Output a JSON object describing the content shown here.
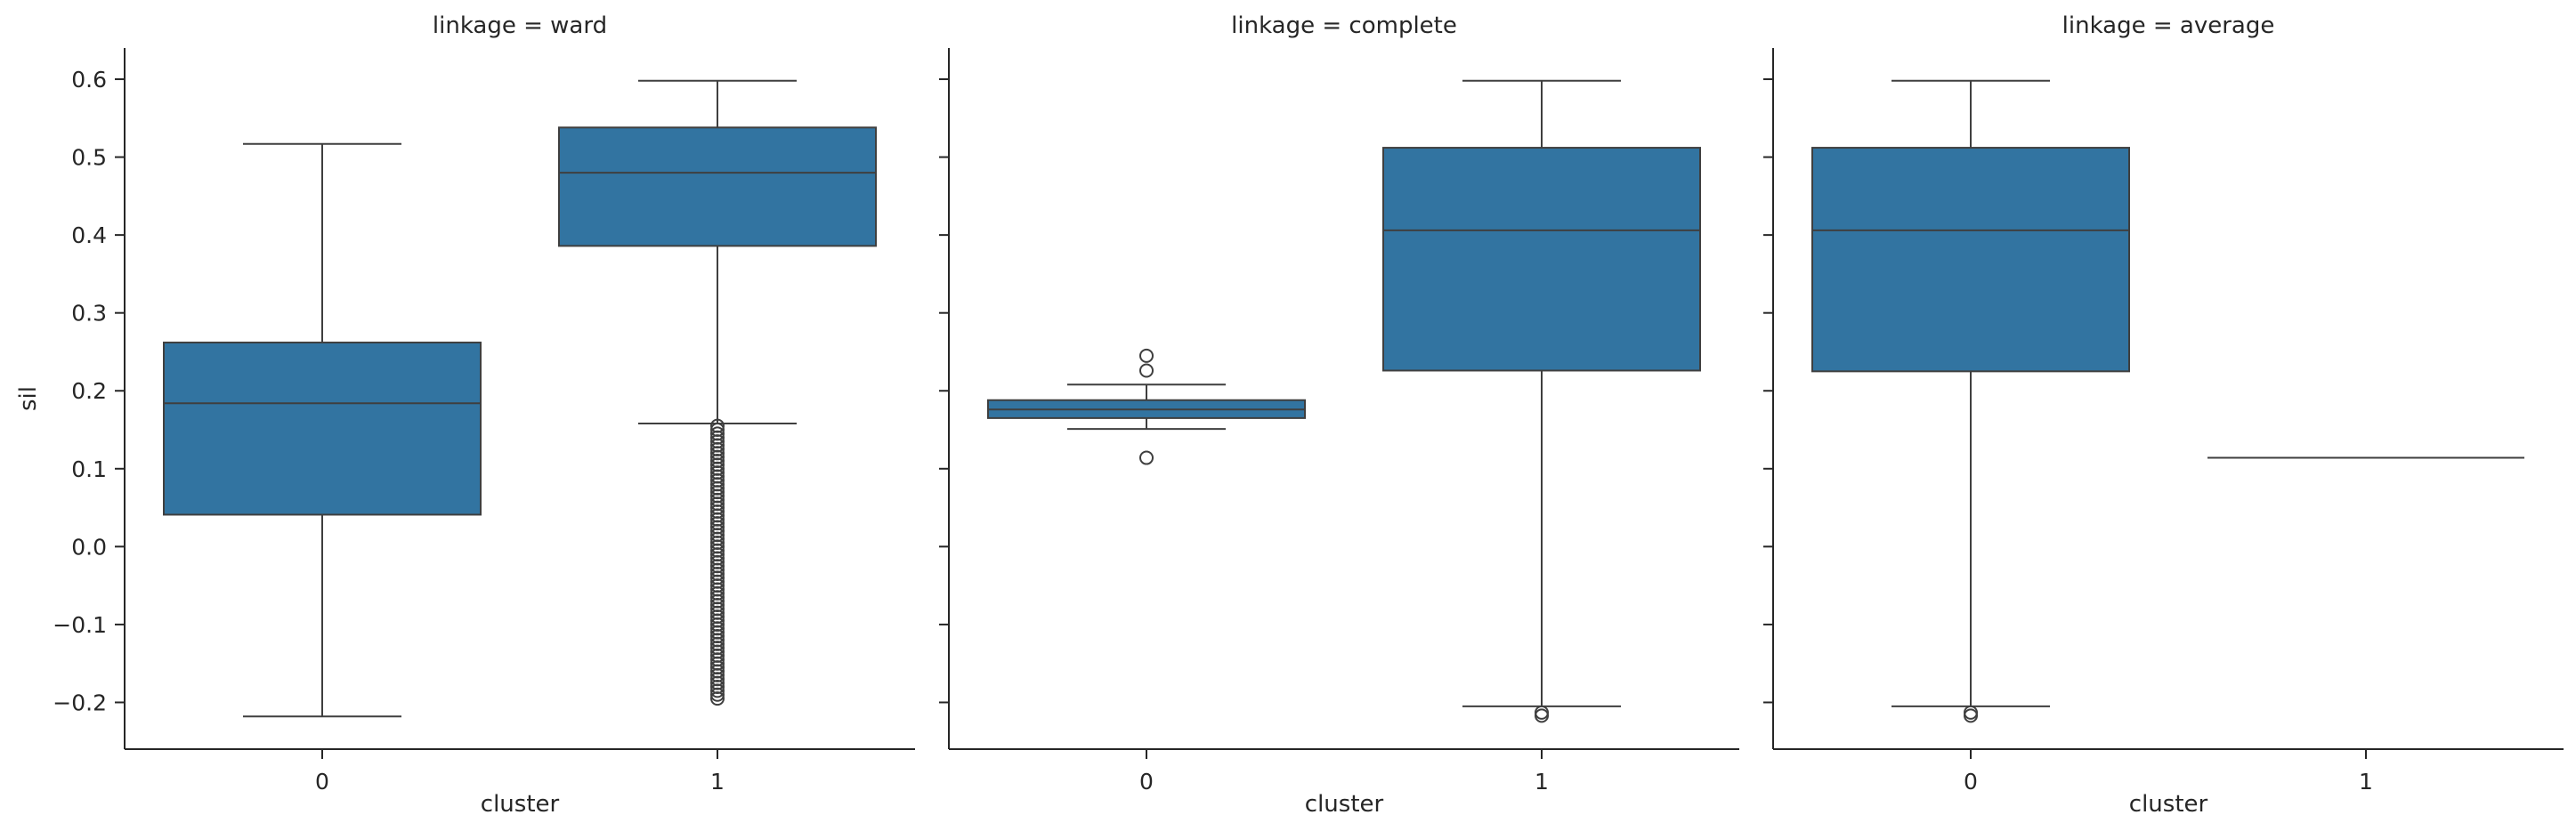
{
  "chart_data": {
    "type": "box",
    "layout": "facet-columns",
    "shared_y_axis": true,
    "y_label": "sil",
    "x_label": "cluster",
    "y_ticks": [
      "0.6",
      "0.5",
      "0.4",
      "0.3",
      "0.2",
      "0.1",
      "0.0",
      "−0.1",
      "−0.2"
    ],
    "y_tick_values": [
      0.6,
      0.5,
      0.4,
      0.3,
      0.2,
      0.1,
      0.0,
      -0.1,
      -0.2
    ],
    "y_range": [
      -0.26,
      0.64
    ],
    "categories": [
      "0",
      "1"
    ],
    "box_color": "#3274a1",
    "edge_color": "#3f3f3f",
    "panels": [
      {
        "title": "linkage = ward",
        "boxes": [
          {
            "category": "0",
            "whisker_low": -0.218,
            "q1": 0.041,
            "median": 0.184,
            "q3": 0.262,
            "whisker_high": 0.517,
            "outliers": []
          },
          {
            "category": "1",
            "whisker_low": 0.158,
            "q1": 0.386,
            "median": 0.48,
            "q3": 0.538,
            "whisker_high": 0.598,
            "outliers": [
              0.155,
              0.15,
              0.145,
              0.14,
              0.135,
              0.13,
              0.125,
              0.12,
              0.115,
              0.11,
              0.105,
              0.1,
              0.095,
              0.09,
              0.085,
              0.08,
              0.075,
              0.07,
              0.065,
              0.06,
              0.055,
              0.05,
              0.045,
              0.04,
              0.035,
              0.03,
              0.025,
              0.02,
              0.015,
              0.01,
              0.005,
              0.0,
              -0.005,
              -0.01,
              -0.015,
              -0.02,
              -0.025,
              -0.03,
              -0.035,
              -0.04,
              -0.045,
              -0.05,
              -0.055,
              -0.06,
              -0.065,
              -0.07,
              -0.075,
              -0.08,
              -0.085,
              -0.09,
              -0.095,
              -0.1,
              -0.105,
              -0.11,
              -0.115,
              -0.12,
              -0.125,
              -0.13,
              -0.135,
              -0.14,
              -0.145,
              -0.15,
              -0.155,
              -0.16,
              -0.165,
              -0.17,
              -0.175,
              -0.18,
              -0.185,
              -0.19,
              -0.195
            ]
          }
        ]
      },
      {
        "title": "linkage = complete",
        "boxes": [
          {
            "category": "0",
            "whisker_low": 0.151,
            "q1": 0.165,
            "median": 0.176,
            "q3": 0.188,
            "whisker_high": 0.208,
            "outliers": [
              0.245,
              0.226,
              0.114
            ]
          },
          {
            "category": "1",
            "whisker_low": -0.205,
            "q1": 0.226,
            "median": 0.406,
            "q3": 0.512,
            "whisker_high": 0.598,
            "outliers": [
              -0.213,
              -0.217
            ]
          }
        ]
      },
      {
        "title": "linkage = average",
        "boxes": [
          {
            "category": "0",
            "whisker_low": -0.205,
            "q1": 0.225,
            "median": 0.406,
            "q3": 0.512,
            "whisker_high": 0.598,
            "outliers": [
              -0.213,
              -0.217
            ]
          },
          {
            "category": "1",
            "whisker_low": 0.114,
            "q1": 0.114,
            "median": 0.114,
            "q3": 0.114,
            "whisker_high": 0.114,
            "outliers": []
          }
        ]
      }
    ]
  }
}
